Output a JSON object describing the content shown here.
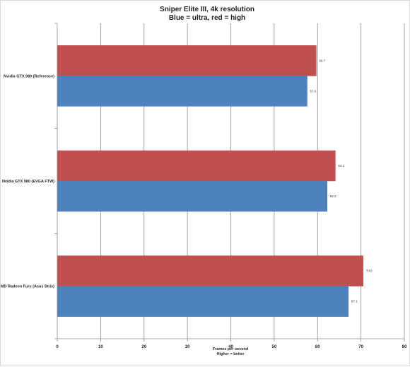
{
  "chart_data": {
    "type": "bar",
    "orientation": "horizontal",
    "title": "Sniper Elite III, 4k resolution",
    "subtitle": "Blue = ultra, red = high",
    "xlabel": [
      "Frames per second",
      "Higher = better"
    ],
    "ylabel": "",
    "xlim": [
      0,
      80
    ],
    "xticks": [
      0,
      10,
      20,
      30,
      40,
      50,
      60,
      70,
      80
    ],
    "categories": [
      "Nvidia GTX 980 (Reference)",
      "Nvidia GTX 980 (EVGA FTW)",
      "AMD Radeon Fury (Asus Strix)"
    ],
    "series": [
      {
        "values": [
          59.7,
          64.1,
          70.5
        ],
        "color": "#c0504d"
      },
      {
        "values": [
          57.6,
          62.2,
          67.1
        ],
        "color": "#4f81bd"
      }
    ],
    "grid": true,
    "legend": "none"
  }
}
